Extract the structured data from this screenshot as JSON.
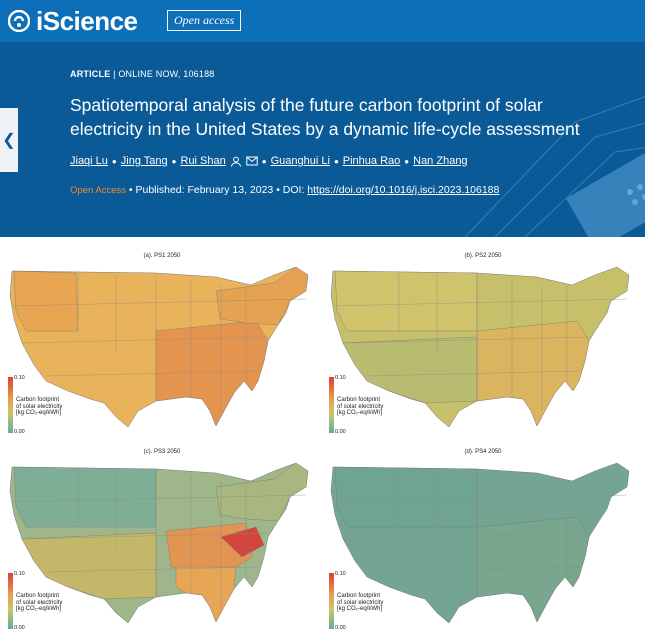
{
  "journal": {
    "name": "iScience",
    "badge": "Open access"
  },
  "article": {
    "type": "ARTICLE",
    "status": "ONLINE NOW, 106188",
    "title": "Spatiotemporal analysis of the future carbon footprint of solar electricity in the United States by a dynamic life-cycle assessment",
    "authors": [
      "Jiaqi Lu",
      "Jing Tang",
      "Rui Shan",
      "Guanghui Li",
      "Pinhua Rao",
      "Nan Zhang"
    ],
    "open_access": "Open Access",
    "published": "Published: February 13, 2023",
    "doi_label": "DOI:",
    "doi": "https://doi.org/10.1016/j.isci.2023.106188"
  },
  "figure": {
    "panels": [
      {
        "title": "(a). PS1 2050"
      },
      {
        "title": "(b). PS2 2050"
      },
      {
        "title": "(c). PS3 2050"
      },
      {
        "title": "(d). PS4 2050"
      }
    ],
    "legend": {
      "label1": "Carbon footprint",
      "label2": "of solar electricity",
      "label3": "[kg CO₂-eq/kWh]",
      "max": "0.10",
      "min": "0.00"
    }
  },
  "colors": {
    "header": "#0b5a98",
    "topbar": "#0d6fb8",
    "accent": "#f08a24"
  },
  "icons": [
    "iscience-logo-icon",
    "back-chevron-icon",
    "person-icon",
    "mail-icon"
  ]
}
